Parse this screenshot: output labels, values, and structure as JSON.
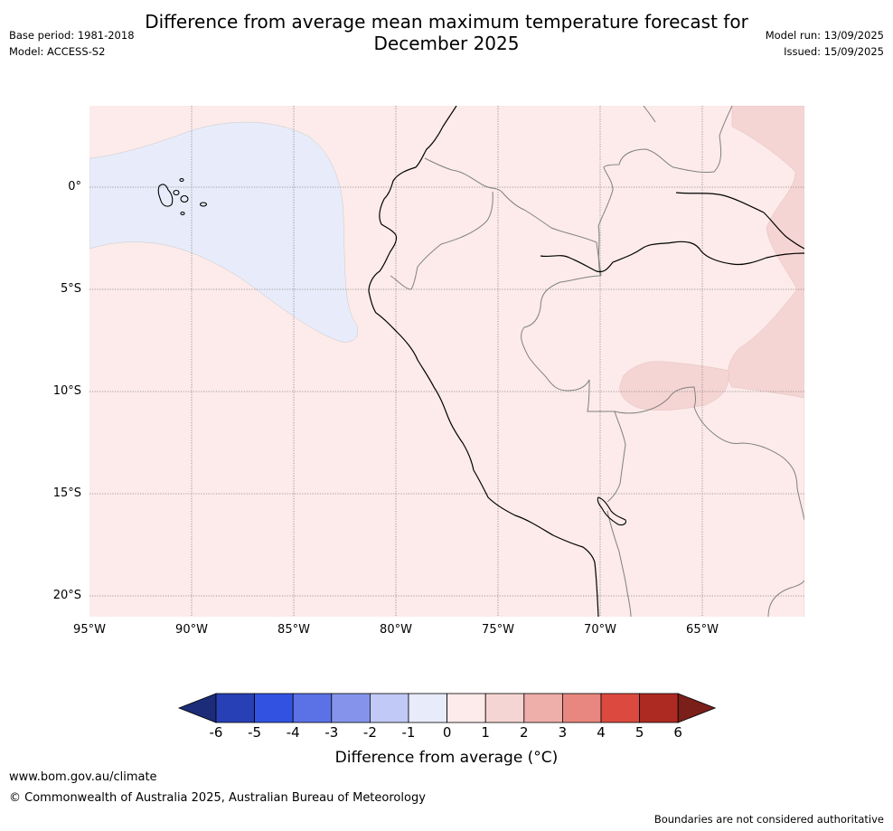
{
  "header": {
    "title_line1": "Difference from average mean maximum temperature forecast for",
    "title_line2": "December 2025",
    "base_period": "Base period: 1981-2018",
    "model": "Model: ACCESS-S2",
    "model_run": "Model run: 13/09/2025",
    "issued": "Issued: 15/09/2025"
  },
  "map": {
    "lat_labels": [
      "0°",
      "5°S",
      "10°S",
      "15°S",
      "20°S"
    ],
    "lon_labels": [
      "95°W",
      "90°W",
      "85°W",
      "80°W",
      "75°W",
      "70°W",
      "65°W"
    ],
    "colors": {
      "background_anomaly_0_1": "#fcebea",
      "anomaly_1_2": "#f5d5d3",
      "anomaly_minus1_0": "#e8ecfa",
      "coastline": "#000000",
      "borders": "#808080",
      "gridlines": "#808080"
    }
  },
  "legend": {
    "ticks": [
      "-6",
      "-5",
      "-4",
      "-3",
      "-2",
      "-1",
      "0",
      "1",
      "2",
      "3",
      "4",
      "5",
      "6"
    ],
    "colors": [
      "#1d2c78",
      "#2740b5",
      "#3253e2",
      "#5a72e6",
      "#8594ea",
      "#c1c9f6",
      "#e8ecfa",
      "#fcebea",
      "#f5d5d3",
      "#eeaeaa",
      "#e7877f",
      "#dc4a3f",
      "#ad2a22",
      "#7a1f1a"
    ],
    "label": "Difference from average (°C)"
  },
  "footer": {
    "url": "www.bom.gov.au/climate",
    "copyright": "© Commonwealth of Australia 2025, Australian Bureau of Meteorology",
    "disclaimer": "Boundaries are not considered authoritative"
  }
}
